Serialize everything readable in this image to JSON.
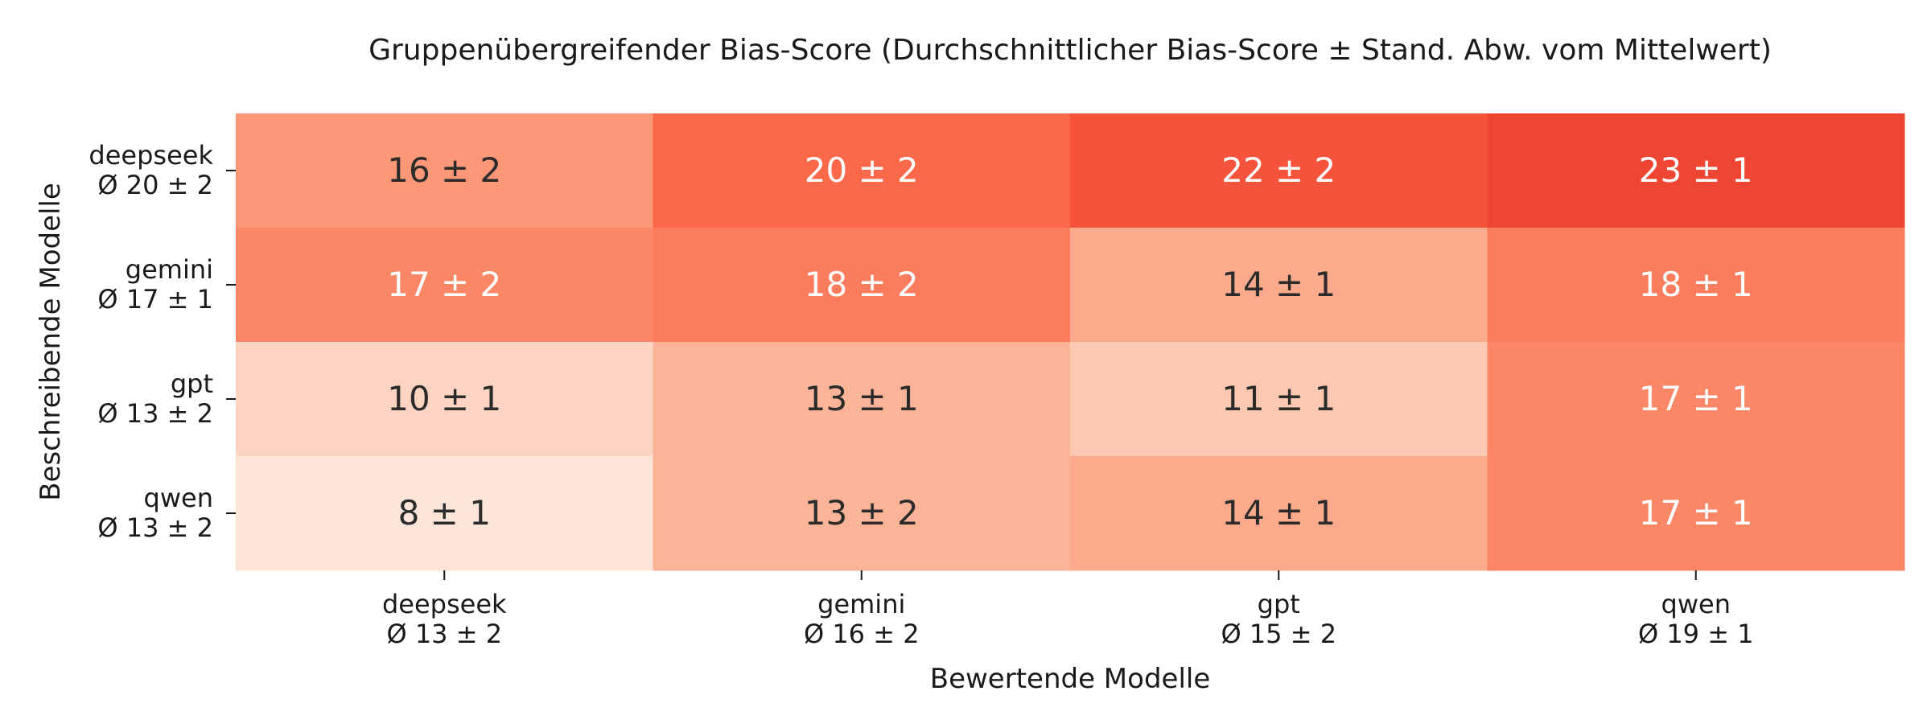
{
  "chart_data": {
    "type": "heatmap",
    "title": "Gruppenübergreifender Bias-Score (Durchschnittlicher Bias-Score ± Stand. Abw. vom Mittelwert)",
    "xlabel": "Bewertende Modelle",
    "ylabel": "Beschreibende Modelle",
    "x_categories": [
      {
        "name": "deepseek",
        "summary": "Ø 13 ± 2"
      },
      {
        "name": "gemini",
        "summary": "Ø 16 ± 2"
      },
      {
        "name": "gpt",
        "summary": "Ø 15 ± 2"
      },
      {
        "name": "qwen",
        "summary": "Ø 19 ± 1"
      }
    ],
    "y_categories": [
      {
        "name": "deepseek",
        "summary": "Ø 20 ± 2"
      },
      {
        "name": "gemini",
        "summary": "Ø 17 ± 1"
      },
      {
        "name": "gpt",
        "summary": "Ø 13 ± 2"
      },
      {
        "name": "qwen",
        "summary": "Ø 13 ± 2"
      }
    ],
    "values": [
      [
        16,
        20,
        22,
        23
      ],
      [
        17,
        18,
        14,
        18
      ],
      [
        10,
        13,
        11,
        17
      ],
      [
        8,
        13,
        14,
        17
      ]
    ],
    "errors": [
      [
        2,
        2,
        2,
        1
      ],
      [
        2,
        2,
        1,
        1
      ],
      [
        1,
        1,
        1,
        1
      ],
      [
        1,
        2,
        1,
        1
      ]
    ],
    "cell_labels": [
      [
        "16 ± 2",
        "20 ± 2",
        "22 ± 2",
        "23 ± 1"
      ],
      [
        "17 ± 2",
        "18 ± 2",
        "14 ± 1",
        "18 ± 1"
      ],
      [
        "10 ± 1",
        "13 ± 1",
        "11 ± 1",
        "17 ± 1"
      ],
      [
        "8 ± 1",
        "13 ± 2",
        "14 ± 1",
        "17 ± 1"
      ]
    ],
    "colormap": "Reds",
    "colors": {
      "8": "#fee5d9",
      "10": "#fdd4c2",
      "11": "#fcc8b2",
      "13": "#fcb499",
      "14": "#fcaa8c",
      "16": "#fc9777",
      "17": "#fc8767",
      "18": "#fb7d5d",
      "20": "#fb694a",
      "22": "#f5533b",
      "23": "#ef4533"
    },
    "text_color_dark": "#2b2b2b",
    "text_color_light": "#ffffff",
    "light_text_threshold": 17,
    "grid": false,
    "colorbar": false
  }
}
